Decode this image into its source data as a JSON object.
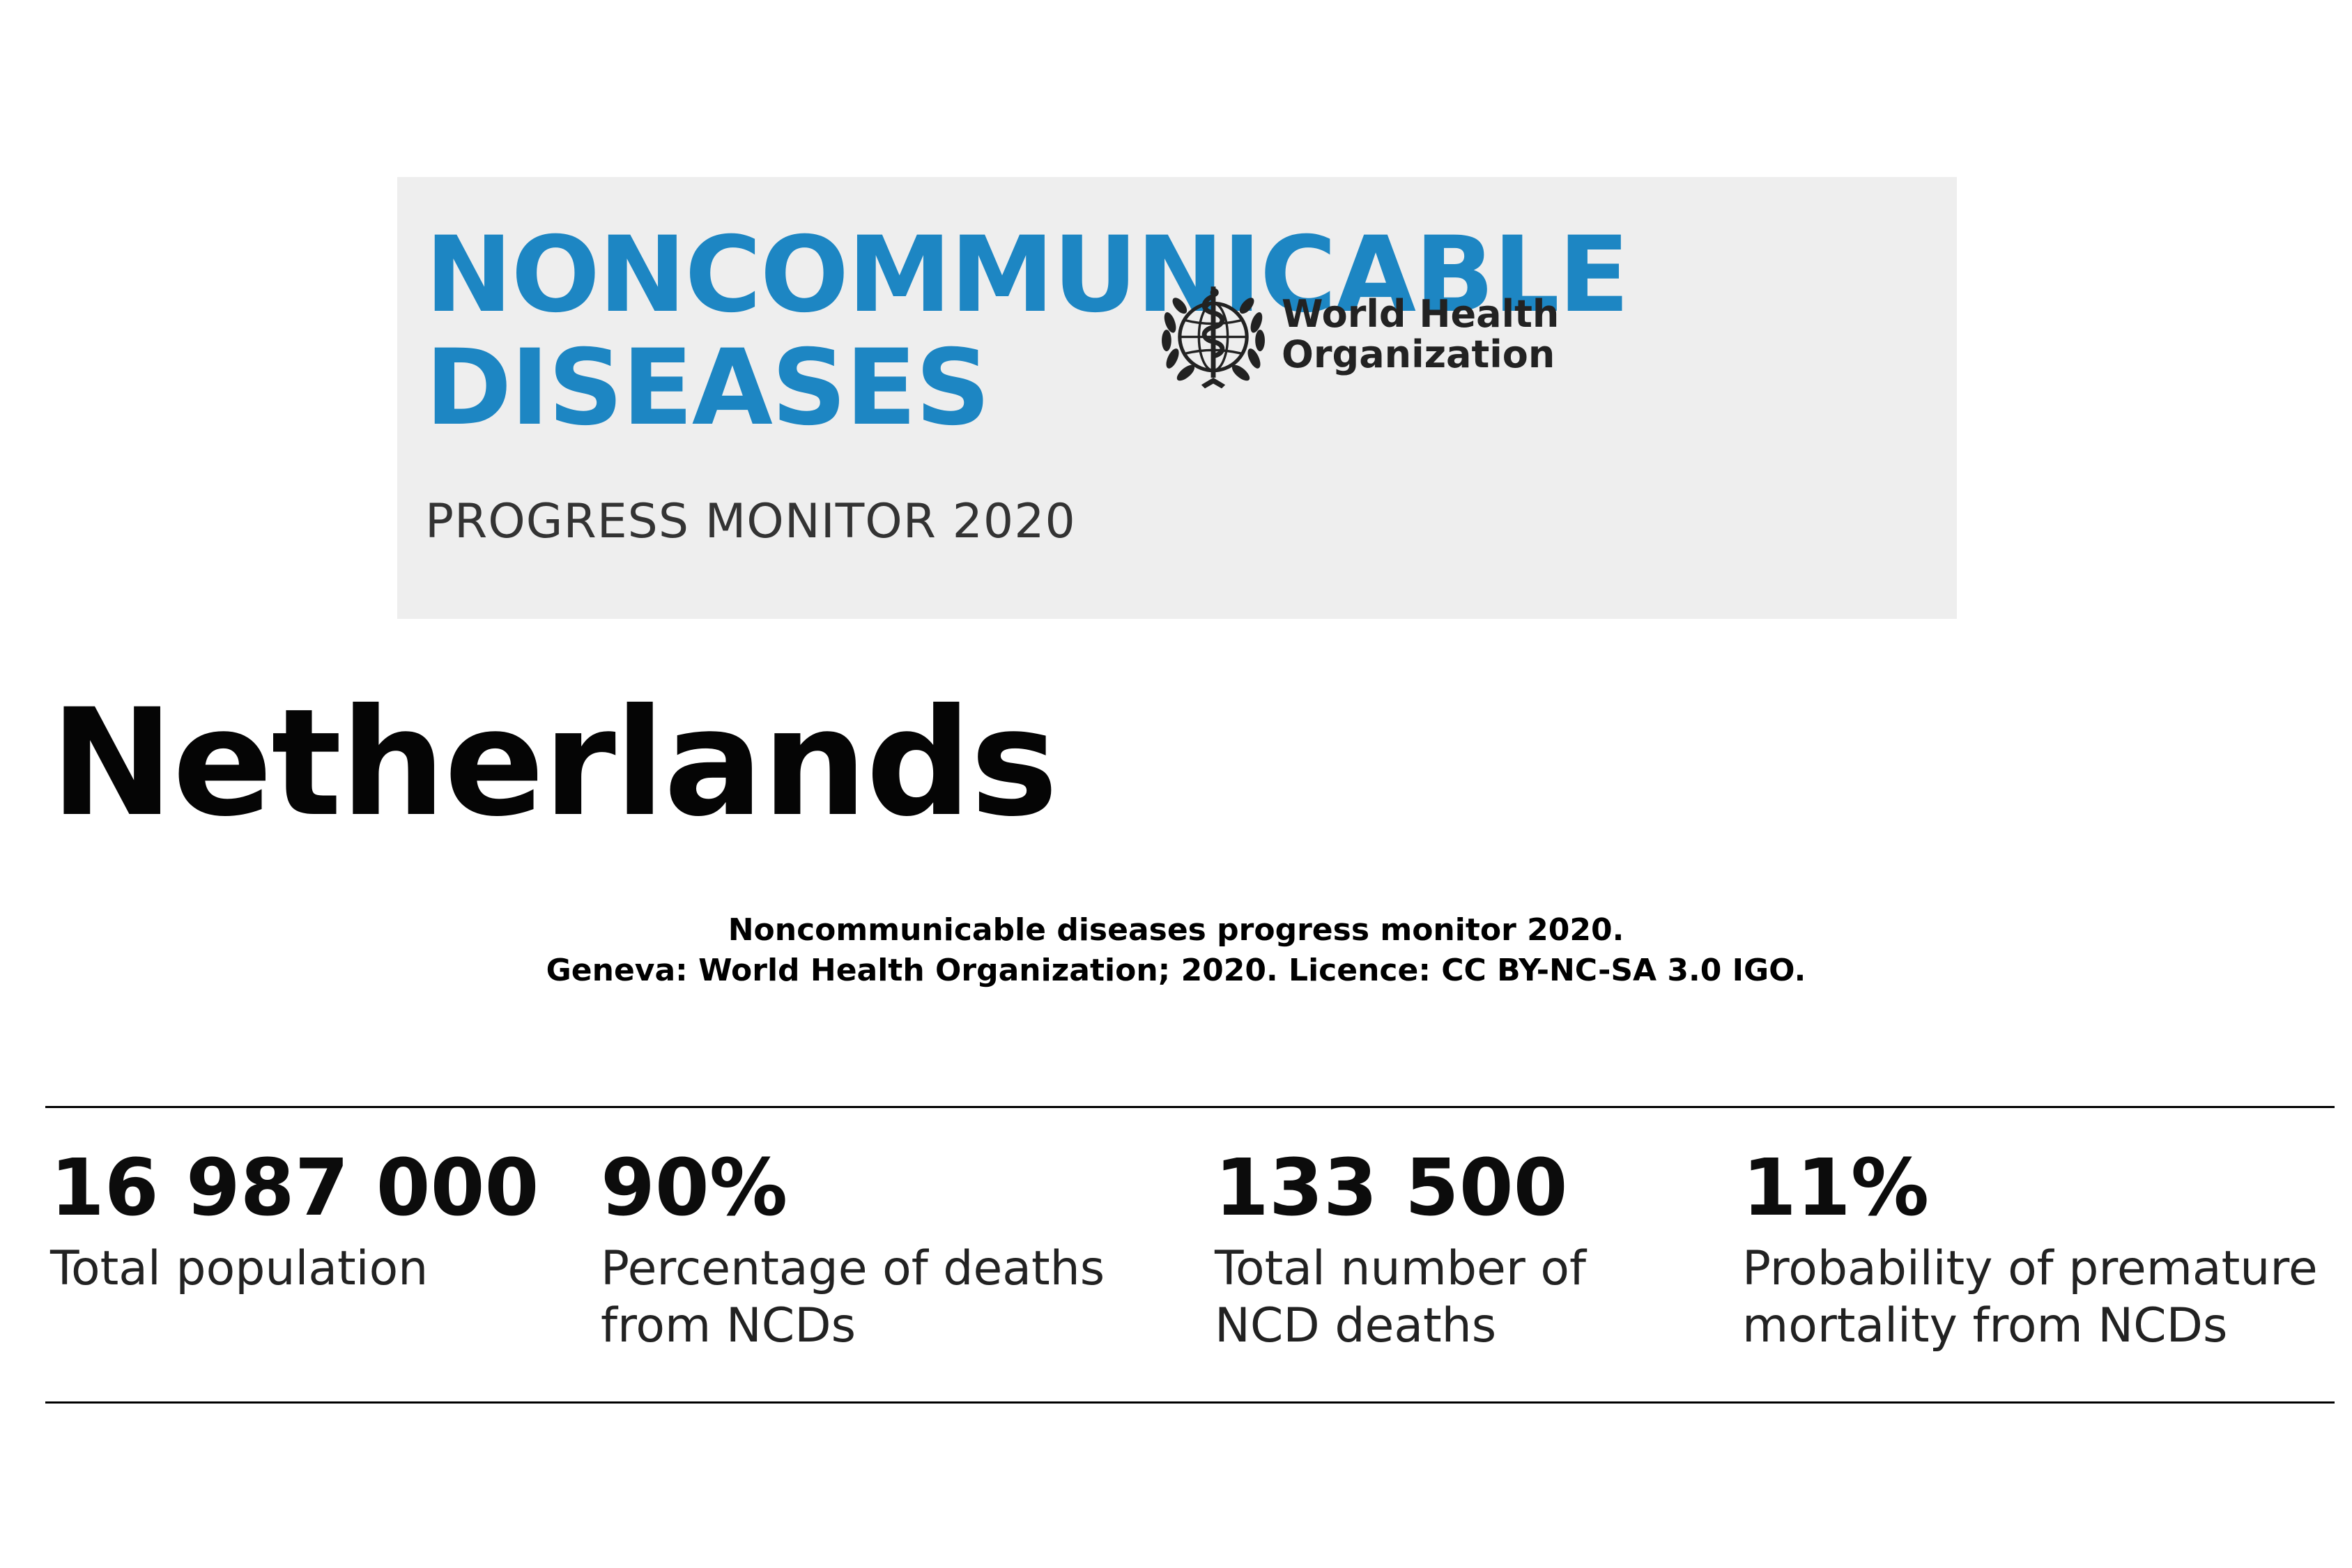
{
  "banner": {
    "title_line1": "NONCOMMUNICABLE",
    "title_line2": "DISEASES",
    "subtitle": "PROGRESS MONITOR 2020",
    "organization_line1": "World Health",
    "organization_line2": "Organization",
    "emblem_icon": "who-emblem-icon",
    "title_color": "#1d86c3",
    "background_color": "#eeeeee"
  },
  "country": "Netherlands",
  "citation": {
    "line1": "Noncommunicable diseases progress monitor 2020.",
    "line2": "Geneva: World Health Organization; 2020. Licence: CC BY-NC-SA 3.0 IGO."
  },
  "stats": [
    {
      "value": "16 987 000",
      "label_line1": "Total population",
      "label_line2": ""
    },
    {
      "value": "90%",
      "label_line1": "Percentage of deaths",
      "label_line2": "from NCDs"
    },
    {
      "value": "133 500",
      "label_line1": "Total number of",
      "label_line2": "NCD deaths"
    },
    {
      "value": "11%",
      "label_line1": "Probability of premature",
      "label_line2": "mortality from NCDs"
    }
  ]
}
